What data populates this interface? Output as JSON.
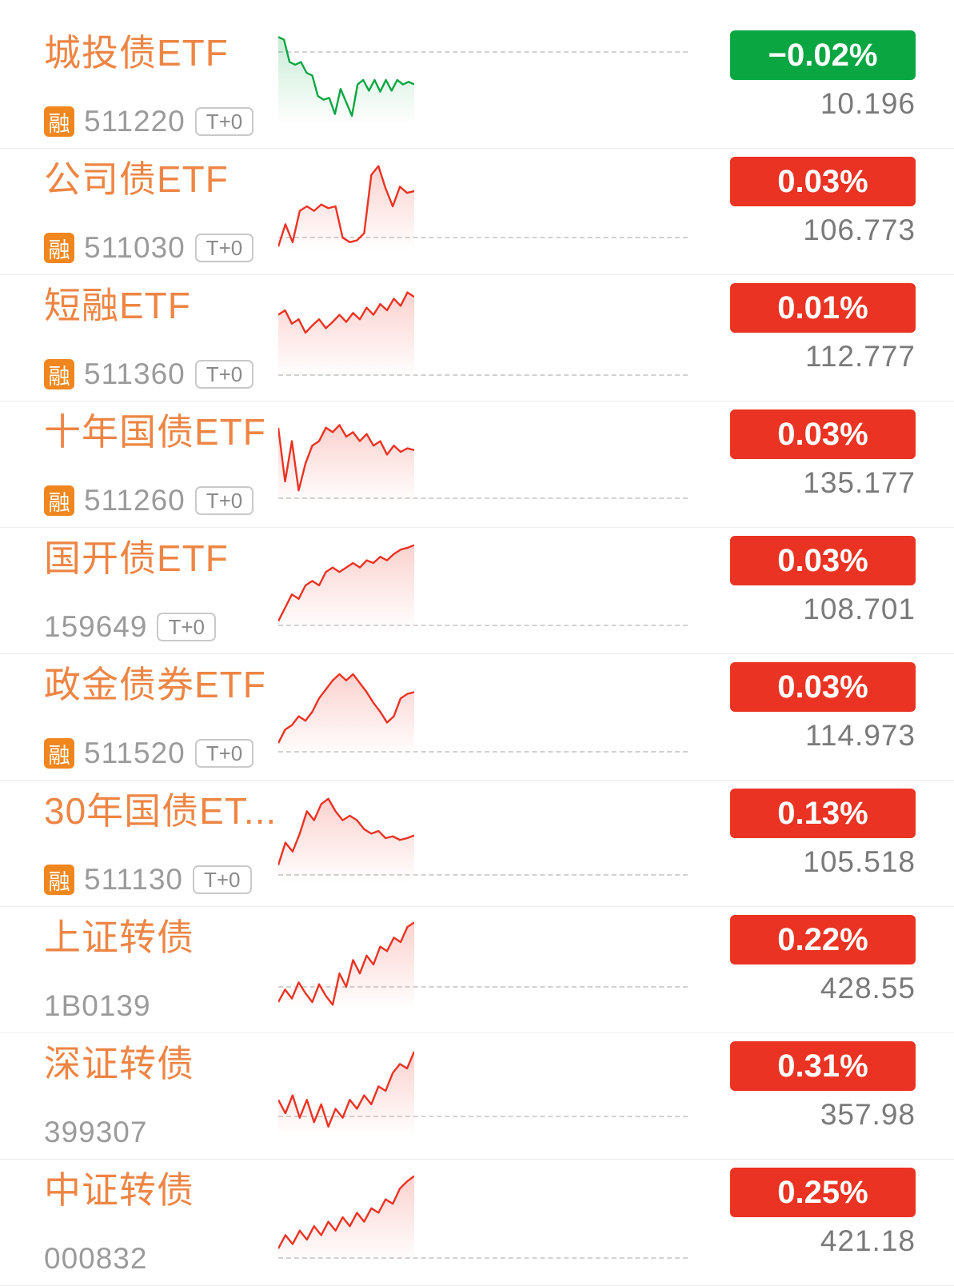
{
  "colors": {
    "up_red": "#ea3323",
    "down_green": "#0aa642",
    "name_orange": "#ee8544",
    "margin_badge_bg": "#f0861e",
    "code_gray": "#9b9b9b",
    "price_gray": "#7a7a7a",
    "dash_gray": "#d2d2d2"
  },
  "list": {
    "margin_badge_label": "融",
    "t0_label": "T+0"
  },
  "rows": [
    {
      "name": "城投债ETF",
      "margin_badge": true,
      "code": "511220",
      "t0": true,
      "change": "−0.02%",
      "price": "10.196",
      "trend": "down",
      "spark": {
        "baseline": 0.18,
        "points": [
          0.02,
          0.05,
          0.3,
          0.33,
          0.3,
          0.42,
          0.45,
          0.68,
          0.72,
          0.7,
          0.88,
          0.6,
          0.75,
          0.9,
          0.55,
          0.5,
          0.62,
          0.5,
          0.63,
          0.5,
          0.62,
          0.5,
          0.55,
          0.52,
          0.55
        ]
      }
    },
    {
      "name": "公司债ETF",
      "margin_badge": true,
      "code": "511030",
      "t0": true,
      "change": "0.03%",
      "price": "106.773",
      "trend": "up",
      "spark": {
        "baseline": 0.84,
        "points": [
          0.95,
          0.7,
          0.9,
          0.55,
          0.5,
          0.55,
          0.48,
          0.52,
          0.5,
          0.85,
          0.9,
          0.88,
          0.8,
          0.15,
          0.05,
          0.3,
          0.5,
          0.28,
          0.35,
          0.33
        ]
      }
    },
    {
      "name": "短融ETF",
      "margin_badge": true,
      "code": "511360",
      "t0": true,
      "change": "0.01%",
      "price": "112.777",
      "trend": "up",
      "spark": {
        "baseline": 0.96,
        "points": [
          0.3,
          0.25,
          0.4,
          0.35,
          0.5,
          0.42,
          0.35,
          0.45,
          0.38,
          0.3,
          0.38,
          0.28,
          0.35,
          0.22,
          0.3,
          0.18,
          0.25,
          0.12,
          0.2,
          0.05,
          0.1
        ]
      }
    },
    {
      "name": "十年国债ETF",
      "margin_badge": true,
      "code": "511260",
      "t0": true,
      "change": "0.03%",
      "price": "135.177",
      "trend": "up",
      "spark": {
        "baseline": 0.93,
        "points": [
          0.15,
          0.75,
          0.3,
          0.85,
          0.55,
          0.35,
          0.3,
          0.15,
          0.2,
          0.12,
          0.25,
          0.2,
          0.3,
          0.22,
          0.35,
          0.3,
          0.45,
          0.35,
          0.42,
          0.38,
          0.4
        ]
      }
    },
    {
      "name": "国开债ETF",
      "margin_badge": false,
      "code": "159649",
      "t0": true,
      "change": "0.03%",
      "price": "108.701",
      "trend": "up",
      "spark": {
        "baseline": 0.94,
        "points": [
          0.9,
          0.75,
          0.6,
          0.65,
          0.5,
          0.45,
          0.5,
          0.35,
          0.3,
          0.35,
          0.3,
          0.25,
          0.3,
          0.22,
          0.25,
          0.18,
          0.22,
          0.15,
          0.1,
          0.08,
          0.05
        ]
      }
    },
    {
      "name": "政金债券ETF",
      "margin_badge": true,
      "code": "511520",
      "t0": true,
      "change": "0.03%",
      "price": "114.973",
      "trend": "up",
      "spark": {
        "baseline": 0.94,
        "points": [
          0.85,
          0.7,
          0.65,
          0.55,
          0.6,
          0.5,
          0.35,
          0.25,
          0.15,
          0.08,
          0.15,
          0.08,
          0.18,
          0.28,
          0.4,
          0.5,
          0.62,
          0.55,
          0.35,
          0.3,
          0.28
        ]
      }
    },
    {
      "name": "30年国债ET...",
      "margin_badge": true,
      "code": "511130",
      "t0": true,
      "change": "0.13%",
      "price": "105.518",
      "trend": "up",
      "spark": {
        "baseline": 0.9,
        "points": [
          0.8,
          0.55,
          0.65,
          0.45,
          0.2,
          0.3,
          0.12,
          0.06,
          0.2,
          0.3,
          0.25,
          0.3,
          0.4,
          0.45,
          0.42,
          0.5,
          0.48,
          0.52,
          0.5,
          0.47
        ]
      }
    },
    {
      "name": "上证转债",
      "margin_badge": false,
      "code": "1B0139",
      "t0": false,
      "change": "0.22%",
      "price": "428.55",
      "trend": "up",
      "spark": {
        "baseline": 0.74,
        "points": [
          0.92,
          0.78,
          0.88,
          0.7,
          0.82,
          0.92,
          0.72,
          0.85,
          0.95,
          0.6,
          0.75,
          0.45,
          0.6,
          0.4,
          0.5,
          0.3,
          0.35,
          0.2,
          0.25,
          0.08,
          0.03
        ]
      }
    },
    {
      "name": "深证转债",
      "margin_badge": false,
      "code": "399307",
      "t0": false,
      "change": "0.31%",
      "price": "357.98",
      "trend": "up",
      "spark": {
        "baseline": 0.78,
        "points": [
          0.6,
          0.75,
          0.55,
          0.8,
          0.6,
          0.85,
          0.65,
          0.9,
          0.7,
          0.8,
          0.6,
          0.7,
          0.55,
          0.65,
          0.45,
          0.5,
          0.3,
          0.2,
          0.25,
          0.06
        ]
      }
    },
    {
      "name": "中证转债",
      "margin_badge": false,
      "code": "000832",
      "t0": false,
      "change": "0.25%",
      "price": "421.18",
      "trend": "up",
      "spark": {
        "baseline": 0.95,
        "points": [
          0.85,
          0.7,
          0.8,
          0.65,
          0.75,
          0.6,
          0.7,
          0.55,
          0.65,
          0.5,
          0.6,
          0.45,
          0.55,
          0.4,
          0.45,
          0.3,
          0.35,
          0.18,
          0.1,
          0.04
        ]
      }
    }
  ]
}
